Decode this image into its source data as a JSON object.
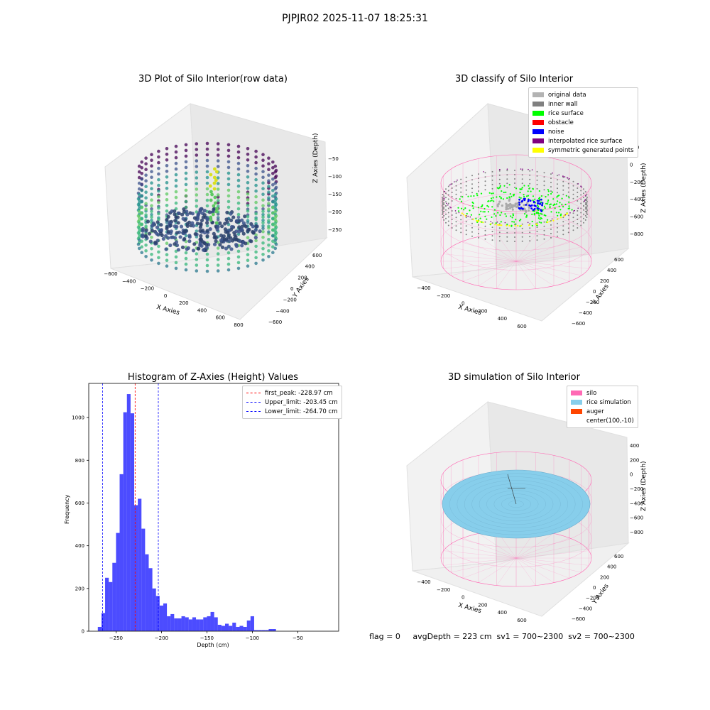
{
  "suptitle": "PJPJR02 2025-11-07 18:25:31",
  "raw_plot": {
    "title": "3D Plot of Silo Interior(row data)",
    "xlabel": "X Axies",
    "ylabel": "Y Axies",
    "zlabel": "Z Axies (Depth)",
    "xticks": [
      "-600",
      "-400",
      "-200",
      "0",
      "200",
      "400",
      "600",
      "800"
    ],
    "yticks": [
      "-600",
      "-400",
      "-200",
      "0",
      "200",
      "400",
      "600"
    ],
    "zticks": [
      "-50",
      "-100",
      "-150",
      "-200",
      "-250"
    ]
  },
  "classify_plot": {
    "title": "3D classify of Silo Interior",
    "xlabel": "X Axies",
    "ylabel": "Y Axies",
    "zlabel": "Z Axies (Depth)",
    "xticks": [
      "-400",
      "-200",
      "0",
      "200",
      "400",
      "600"
    ],
    "yticks": [
      "-600",
      "-400",
      "-200",
      "0",
      "200",
      "400",
      "600"
    ],
    "zticks": [
      "200",
      "0",
      "-200",
      "-400",
      "-600",
      "-800"
    ],
    "legend": [
      {
        "label": "original data",
        "color": "#b3b3b3"
      },
      {
        "label": "inner wall",
        "color": "#808080"
      },
      {
        "label": "rice surface",
        "color": "#00ff00"
      },
      {
        "label": "obstacle",
        "color": "#ff0000"
      },
      {
        "label": "noise",
        "color": "#0000ff"
      },
      {
        "label": "interpolated rice surface",
        "color": "#800080"
      },
      {
        "label": "symmetric generated points",
        "color": "#ffff00"
      }
    ],
    "z_top_label": "0"
  },
  "sim_plot": {
    "title": "3D simulation of Silo Interior",
    "xlabel": "X Axies",
    "ylabel": "Y Axies",
    "zlabel": "Z Axies (Depth)",
    "xticks": [
      "-400",
      "-200",
      "0",
      "200",
      "400",
      "600"
    ],
    "yticks": [
      "-600",
      "-400",
      "-200",
      "0",
      "200",
      "400",
      "600"
    ],
    "zticks": [
      "400",
      "200",
      "0",
      "-200",
      "-400",
      "-600",
      "-800"
    ],
    "legend": [
      {
        "label": "silo",
        "color": "#ff69b4"
      },
      {
        "label": "rice simulation",
        "color": "#87ceeb"
      },
      {
        "label": "auger",
        "color": "#ff4500"
      },
      {
        "label": "center(100,-10)",
        "color": ""
      }
    ]
  },
  "footer": "flag = 0     avgDepth = 223 cm  sv1 = 700~2300  sv2 = 700~2300",
  "chart_data": {
    "type": "bar",
    "title": "Histogram of Z-Axies (Height) Values",
    "xlabel": "Depth (cm)",
    "ylabel": "Frequency",
    "color": "#0000ff",
    "xlim": [
      -280,
      -5
    ],
    "ylim": [
      0,
      1160
    ],
    "xticks": [
      -250,
      -200,
      -150,
      -100,
      -50
    ],
    "yticks": [
      0,
      200,
      400,
      600,
      800,
      1000
    ],
    "bin_start": -270,
    "bin_width": 4,
    "values": [
      20,
      85,
      250,
      230,
      320,
      460,
      735,
      1025,
      1110,
      1020,
      590,
      620,
      480,
      360,
      295,
      200,
      165,
      120,
      130,
      70,
      80,
      60,
      60,
      70,
      65,
      55,
      65,
      55,
      55,
      65,
      70,
      90,
      65,
      30,
      25,
      35,
      25,
      40,
      20,
      25,
      20,
      50,
      70,
      5,
      5,
      5,
      5,
      10,
      10
    ],
    "lines": [
      {
        "label": "first_peak: -228.97 cm",
        "value": -228.97,
        "color": "#ff0000"
      },
      {
        "label": "Upper_limit: -203.45 cm",
        "value": -203.45,
        "color": "#0000ff"
      },
      {
        "label": "Lower_limit: -264.70 cm",
        "value": -264.7,
        "color": "#0000ff"
      }
    ],
    "legend_position": "upper right",
    "grid": false
  }
}
